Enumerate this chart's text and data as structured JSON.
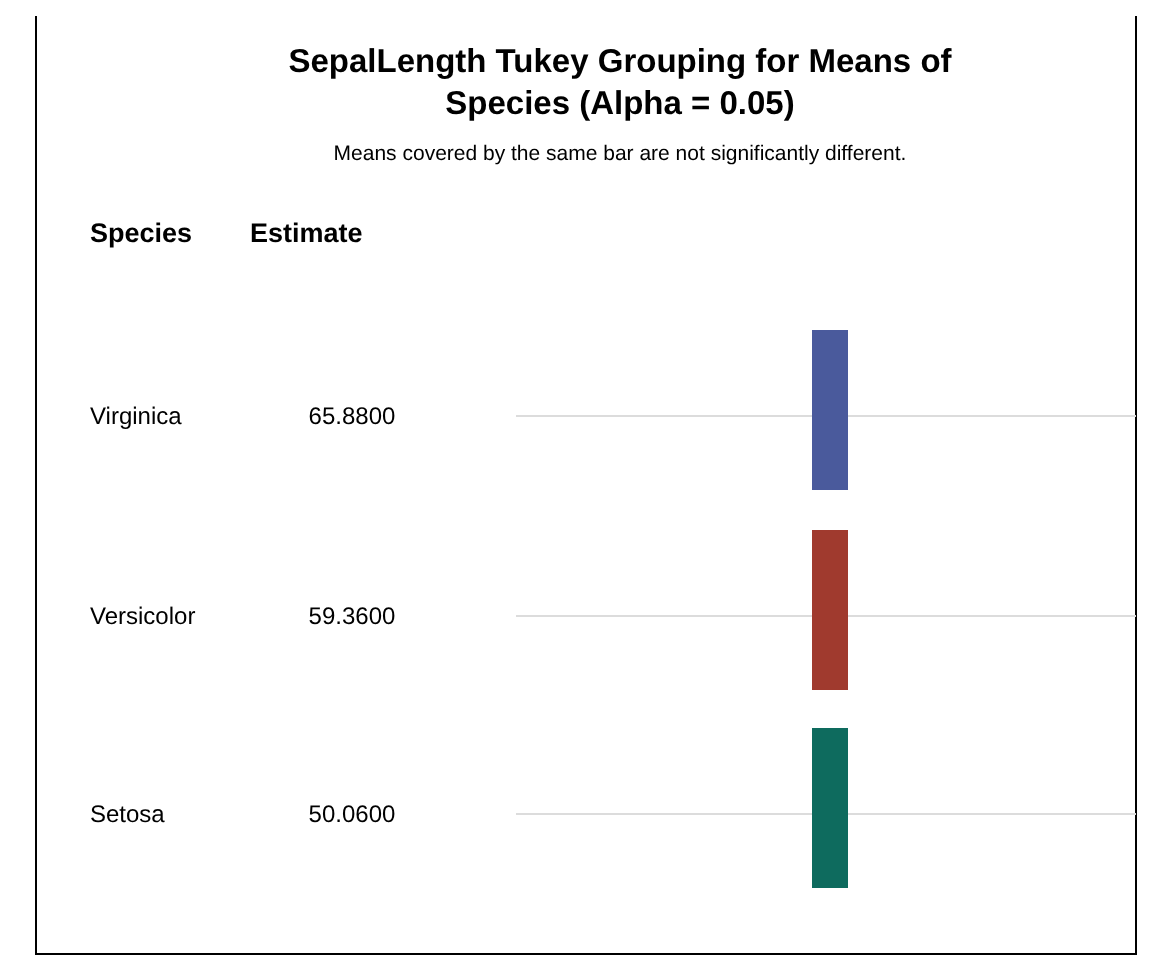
{
  "chart_data": {
    "type": "other",
    "title": "SepalLength Tukey Grouping for Means of Species (Alpha = 0.05)",
    "subtitle": "Means covered by the same bar are not significantly different.",
    "annotations": [
      "Species",
      "Estimate"
    ],
    "categories": [
      "Virginica",
      "Versicolor",
      "Setosa"
    ],
    "values": [
      65.88,
      59.36,
      50.06
    ],
    "value_labels": [
      "65.8800",
      "59.3600",
      "50.0600"
    ],
    "colors": [
      "#4a5a9c",
      "#a03a2e",
      "#0e6b5e"
    ]
  }
}
